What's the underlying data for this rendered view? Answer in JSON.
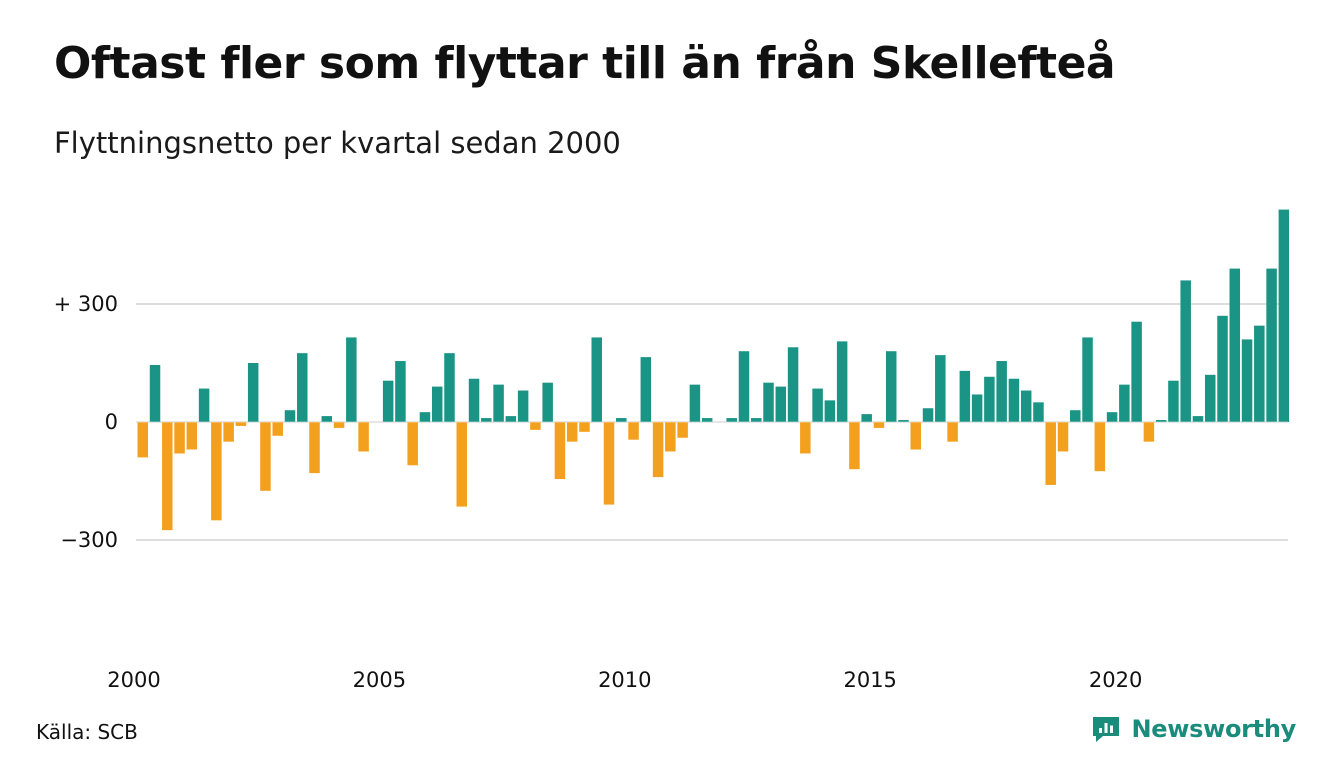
{
  "title": "Oftast fler som flyttar till än från Skellefteå",
  "subtitle": "Flyttningsnetto per kvartal sedan 2000",
  "source": "Källa: SCB",
  "brand": "Newsworthy",
  "colors": {
    "positive": "#1a9585",
    "negative": "#f4a01f",
    "gridline": "#dddddd",
    "brand": "#1a8c7c"
  },
  "chart_data": {
    "type": "bar",
    "grid": true,
    "ylim": [
      -390,
      540
    ],
    "yticks": [
      {
        "value": 300,
        "label": "+ 300"
      },
      {
        "value": 0,
        "label": "0"
      },
      {
        "value": -300,
        "label": "−300"
      }
    ],
    "xticks": [
      "2000",
      "2005",
      "2010",
      "2015",
      "2020"
    ],
    "start_year": 2000,
    "values": [
      -90,
      145,
      -275,
      -80,
      -70,
      85,
      -250,
      -50,
      -10,
      150,
      -175,
      -35,
      30,
      175,
      -130,
      15,
      -15,
      215,
      -75,
      0,
      105,
      155,
      -110,
      25,
      90,
      175,
      -215,
      110,
      10,
      95,
      15,
      80,
      -20,
      100,
      -145,
      -50,
      -25,
      215,
      -210,
      10,
      -45,
      165,
      -140,
      -75,
      -40,
      95,
      10,
      0,
      10,
      180,
      10,
      100,
      90,
      190,
      -80,
      85,
      55,
      205,
      -120,
      20,
      -15,
      180,
      5,
      -70,
      35,
      170,
      -50,
      130,
      70,
      115,
      155,
      110,
      80,
      50,
      -160,
      -75,
      30,
      215,
      -125,
      25,
      95,
      255,
      -50,
      5,
      105,
      360,
      15,
      120,
      270,
      390,
      210,
      245,
      390,
      540
    ]
  }
}
